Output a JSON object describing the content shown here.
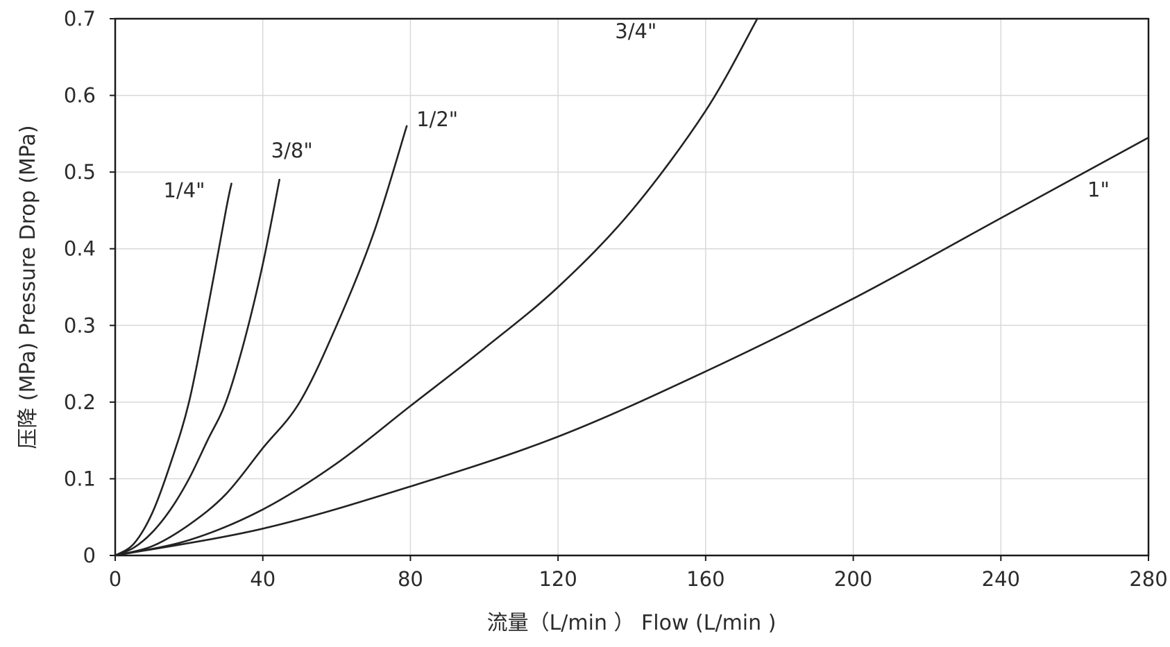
{
  "chart_data": {
    "type": "line",
    "xlabel": "流量（L/min ）  Flow (L/min )",
    "ylabel": "压降 (MPa)  Pressure Drop (MPa)",
    "xlim": [
      0,
      280
    ],
    "ylim": [
      0,
      0.7
    ],
    "x_ticks": [
      "0",
      "40",
      "80",
      "120",
      "160",
      "200",
      "240",
      "280"
    ],
    "y_ticks": [
      "0",
      "0.1",
      "0.2",
      "0.3",
      "0.4",
      "0.5",
      "0.6",
      "0.7"
    ],
    "grid": true,
    "series": [
      {
        "name": "1/4\"",
        "x": [
          0,
          5,
          10,
          15,
          20,
          25,
          30,
          31.5
        ],
        "y": [
          0,
          0.015,
          0.055,
          0.12,
          0.2,
          0.32,
          0.45,
          0.485
        ]
      },
      {
        "name": "3/8\"",
        "x": [
          0,
          5,
          10,
          15,
          20,
          25,
          30,
          35,
          40,
          44.5
        ],
        "y": [
          0,
          0.01,
          0.03,
          0.06,
          0.1,
          0.15,
          0.2,
          0.28,
          0.38,
          0.49
        ]
      },
      {
        "name": "1/2\"",
        "x": [
          0,
          10,
          20,
          30,
          40,
          50,
          60,
          70,
          79
        ],
        "y": [
          0,
          0.012,
          0.04,
          0.08,
          0.14,
          0.2,
          0.3,
          0.42,
          0.56
        ]
      },
      {
        "name": "3/4\"",
        "x": [
          0,
          20,
          40,
          60,
          80,
          100,
          120,
          140,
          160,
          174
        ],
        "y": [
          0,
          0.02,
          0.06,
          0.12,
          0.195,
          0.27,
          0.35,
          0.45,
          0.58,
          0.7
        ]
      },
      {
        "name": "1\"",
        "x": [
          0,
          40,
          80,
          120,
          160,
          200,
          240,
          280
        ],
        "y": [
          0,
          0.035,
          0.09,
          0.155,
          0.24,
          0.335,
          0.44,
          0.545
        ]
      }
    ]
  }
}
